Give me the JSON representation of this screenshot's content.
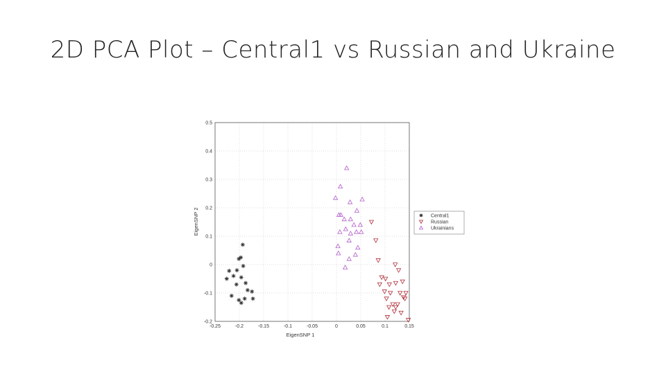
{
  "slide": {
    "title": "2D PCA Plot – Central1 vs Russian and Ukraine"
  },
  "chart_data": {
    "type": "scatter",
    "xlabel": "EigenSNP 1",
    "ylabel": "EigenSNP 2",
    "xlim": [
      -0.25,
      0.15
    ],
    "ylim": [
      -0.2,
      0.5
    ],
    "xticks": [
      "-0.25",
      "-0.2",
      "-0.15",
      "-0.1",
      "-0.05",
      "0",
      "0.05",
      "0.1",
      "0.15"
    ],
    "yticks": [
      "-0.2",
      "-0.1",
      "0",
      "0.1",
      "0.2",
      "0.3",
      "0.4",
      "0.5"
    ],
    "grid": true,
    "legend_position": "right",
    "series": [
      {
        "name": "Central1",
        "marker": "star",
        "color": "#333333",
        "points": [
          [
            -0.193,
            0.07
          ],
          [
            -0.197,
            0.025
          ],
          [
            -0.201,
            0.02
          ],
          [
            -0.192,
            -0.005
          ],
          [
            -0.221,
            -0.022
          ],
          [
            -0.205,
            -0.02
          ],
          [
            -0.212,
            -0.04
          ],
          [
            -0.196,
            -0.045
          ],
          [
            -0.226,
            -0.05
          ],
          [
            -0.206,
            -0.07
          ],
          [
            -0.187,
            -0.065
          ],
          [
            -0.183,
            -0.09
          ],
          [
            -0.216,
            -0.11
          ],
          [
            -0.201,
            -0.125
          ],
          [
            -0.196,
            -0.135
          ],
          [
            -0.189,
            -0.12
          ],
          [
            -0.172,
            -0.12
          ],
          [
            -0.174,
            -0.095
          ]
        ]
      },
      {
        "name": "Russian",
        "marker": "triangle-down",
        "color": "#b0303a",
        "points": [
          [
            0.072,
            0.15
          ],
          [
            0.081,
            0.085
          ],
          [
            0.086,
            0.015
          ],
          [
            0.121,
            0.0
          ],
          [
            0.128,
            -0.02
          ],
          [
            0.093,
            -0.045
          ],
          [
            0.101,
            -0.05
          ],
          [
            0.109,
            -0.07
          ],
          [
            0.122,
            -0.065
          ],
          [
            0.136,
            -0.06
          ],
          [
            0.089,
            -0.07
          ],
          [
            0.099,
            -0.095
          ],
          [
            0.111,
            -0.1
          ],
          [
            0.131,
            -0.1
          ],
          [
            0.143,
            -0.1
          ],
          [
            0.138,
            -0.115
          ],
          [
            0.103,
            -0.12
          ],
          [
            0.116,
            -0.14
          ],
          [
            0.126,
            -0.14
          ],
          [
            0.141,
            -0.12
          ],
          [
            0.119,
            -0.165
          ],
          [
            0.105,
            -0.185
          ],
          [
            0.133,
            -0.17
          ],
          [
            0.148,
            -0.195
          ],
          [
            0.122,
            -0.15
          ],
          [
            0.108,
            -0.15
          ]
        ]
      },
      {
        "name": "Ukrainians",
        "marker": "triangle-up",
        "color": "#b05cc8",
        "points": [
          [
            0.021,
            0.34
          ],
          [
            0.008,
            0.275
          ],
          [
            0.053,
            0.23
          ],
          [
            -0.002,
            0.235
          ],
          [
            0.028,
            0.22
          ],
          [
            0.042,
            0.19
          ],
          [
            0.009,
            0.175
          ],
          [
            0.016,
            0.16
          ],
          [
            0.029,
            0.16
          ],
          [
            0.005,
            0.175
          ],
          [
            0.049,
            0.14
          ],
          [
            0.036,
            0.14
          ],
          [
            0.019,
            0.125
          ],
          [
            0.007,
            0.115
          ],
          [
            0.041,
            0.115
          ],
          [
            0.029,
            0.11
          ],
          [
            0.051,
            0.115
          ],
          [
            0.044,
            0.06
          ],
          [
            0.003,
            0.065
          ],
          [
            0.004,
            0.04
          ],
          [
            0.039,
            0.035
          ],
          [
            0.026,
            0.02
          ],
          [
            0.018,
            -0.01
          ],
          [
            0.026,
            0.085
          ]
        ]
      }
    ]
  }
}
